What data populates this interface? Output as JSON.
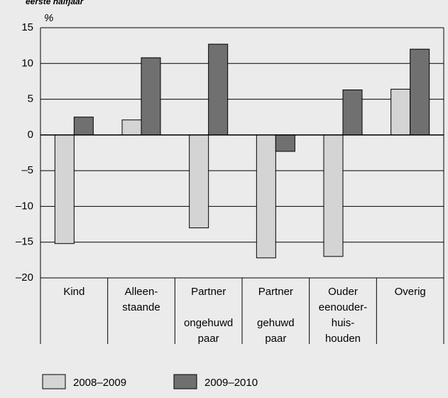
{
  "chart_data": {
    "type": "bar",
    "title": "eerste halfjaar",
    "y_label": "%",
    "categories": [
      [
        "Kind"
      ],
      [
        "Alleen-",
        "staande"
      ],
      [
        "Partner",
        "ongehuwd",
        "paar"
      ],
      [
        "Partner",
        "gehuwd",
        "paar"
      ],
      [
        "Ouder",
        "eenouder-",
        "huis-",
        "houden"
      ],
      [
        "Overig"
      ]
    ],
    "series": [
      {
        "name": "2008–2009",
        "color": "#d4d4d4",
        "values": [
          -15.2,
          2.1,
          -13,
          -17.2,
          -17,
          6.4
        ]
      },
      {
        "name": "2009–2010",
        "color": "#707070",
        "values": [
          2.5,
          10.8,
          12.7,
          -2.3,
          6.3,
          12
        ]
      }
    ],
    "ylim": [
      -20,
      15
    ],
    "yticks": [
      15,
      10,
      5,
      0,
      {
        "value": -5,
        "label": "–5"
      },
      {
        "value": -10,
        "label": "–10"
      },
      {
        "value": -15,
        "label": "–15"
      },
      {
        "value": -20,
        "label": "–20"
      }
    ],
    "grid": true
  }
}
